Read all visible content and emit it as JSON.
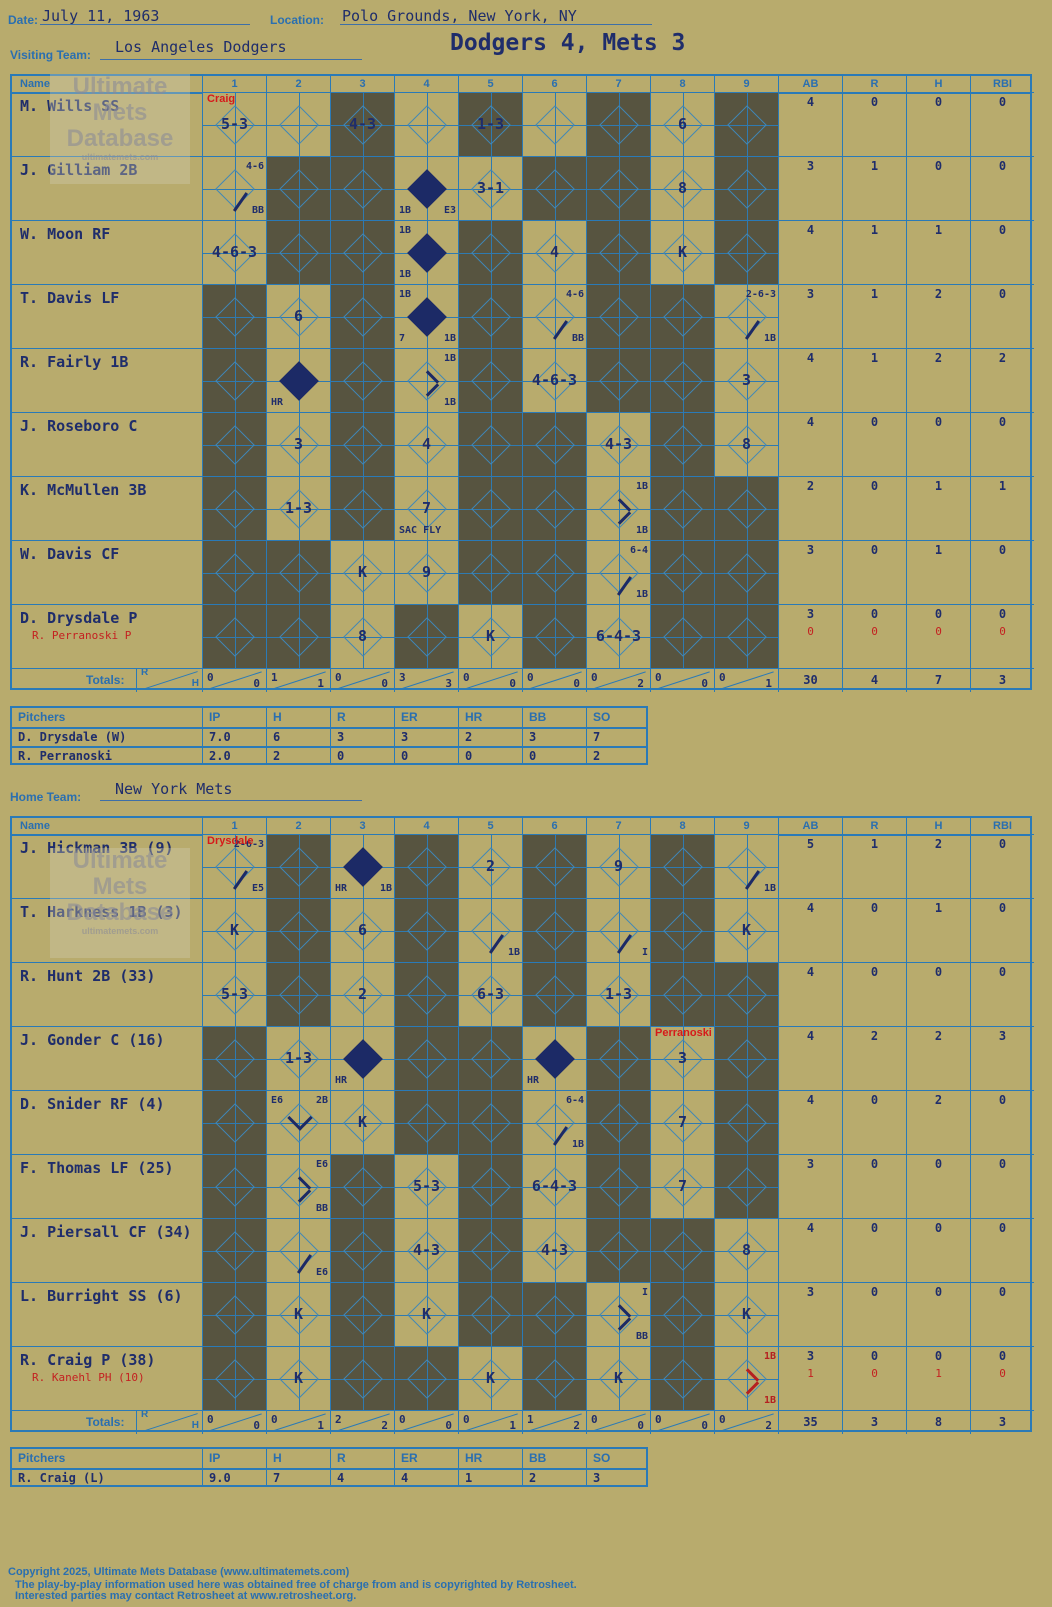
{
  "header": {
    "date_label": "Date:",
    "date": "July 11, 1963",
    "location_label": "Location:",
    "location": "Polo Grounds, New York, NY",
    "visiting_label": "Visiting Team:",
    "visiting_team": "Los Angeles Dodgers",
    "result": "Dodgers 4, Mets 3",
    "home_label": "Home Team:",
    "home_team": "New York Mets"
  },
  "columns": {
    "name": "Name",
    "innings": [
      "1",
      "2",
      "3",
      "4",
      "5",
      "6",
      "7",
      "8",
      "9"
    ],
    "stats": [
      "AB",
      "R",
      "H",
      "RBI"
    ]
  },
  "visitors": {
    "players": [
      {
        "name": "M. Wills SS",
        "stats": [
          "4",
          "0",
          "0",
          "0"
        ]
      },
      {
        "name": "J. Gilliam 2B",
        "stats": [
          "3",
          "1",
          "0",
          "0"
        ]
      },
      {
        "name": "W. Moon RF",
        "stats": [
          "4",
          "1",
          "1",
          "0"
        ]
      },
      {
        "name": "T. Davis LF",
        "stats": [
          "3",
          "1",
          "2",
          "0"
        ]
      },
      {
        "name": "R. Fairly 1B",
        "stats": [
          "4",
          "1",
          "2",
          "2"
        ]
      },
      {
        "name": "J. Roseboro C",
        "stats": [
          "4",
          "0",
          "0",
          "0"
        ]
      },
      {
        "name": "K. McMullen 3B",
        "stats": [
          "2",
          "0",
          "1",
          "1"
        ]
      },
      {
        "name": "W. Davis CF",
        "stats": [
          "3",
          "0",
          "1",
          "0"
        ]
      },
      {
        "name": "D. Drysdale P",
        "sub": "R. Perranoski P",
        "stats": [
          "3",
          "0",
          "0",
          "0"
        ],
        "substats": [
          "0",
          "0",
          "0",
          "0"
        ]
      }
    ],
    "totals_label": "Totals:",
    "totals_rh": [
      "R",
      "H"
    ],
    "inning_totals": [
      [
        "0",
        "0"
      ],
      [
        "1",
        "1"
      ],
      [
        "0",
        "0"
      ],
      [
        "3",
        "3"
      ],
      [
        "0",
        "0"
      ],
      [
        "0",
        "0"
      ],
      [
        "0",
        "2"
      ],
      [
        "0",
        "0"
      ],
      [
        "0",
        "1"
      ]
    ],
    "game_totals": [
      "30",
      "4",
      "7",
      "3"
    ],
    "pitch_change": {
      "text": "Craig",
      "row": 0,
      "inning": 0
    },
    "plays": [
      {
        "r": 0,
        "c": 0,
        "t": "5-3"
      },
      {
        "r": 0,
        "c": 2,
        "t": "4-3"
      },
      {
        "r": 0,
        "c": 4,
        "t": "1-3"
      },
      {
        "r": 0,
        "c": 7,
        "t": "6"
      },
      {
        "r": 1,
        "c": 0,
        "t": "",
        "tr": "4-6",
        "br": "BB",
        "line": true
      },
      {
        "r": 1,
        "c": 3,
        "t": "",
        "filled": true,
        "bl": "1B",
        "br": "E3"
      },
      {
        "r": 1,
        "c": 4,
        "t": "3-1"
      },
      {
        "r": 1,
        "c": 7,
        "t": "8"
      },
      {
        "r": 2,
        "c": 0,
        "t": "4-6-3"
      },
      {
        "r": 2,
        "c": 3,
        "t": "",
        "filled": true,
        "tl": "1B",
        "bl": "1B"
      },
      {
        "r": 2,
        "c": 5,
        "t": "4"
      },
      {
        "r": 2,
        "c": 7,
        "t": "K"
      },
      {
        "r": 3,
        "c": 1,
        "t": "6"
      },
      {
        "r": 3,
        "c": 3,
        "t": "",
        "filled": true,
        "tl": "1B",
        "bl": "7",
        "br": "1B"
      },
      {
        "r": 3,
        "c": 5,
        "t": "",
        "tr": "4-6",
        "br": "BB",
        "line": true
      },
      {
        "r": 3,
        "c": 8,
        "t": "",
        "tr": "2-6-3",
        "br": "1B",
        "line": true
      },
      {
        "r": 4,
        "c": 1,
        "t": "",
        "filled": true,
        "bl": "HR"
      },
      {
        "r": 4,
        "c": 3,
        "t": "",
        "tr": "1B",
        "br": "1B",
        "bracket": true
      },
      {
        "r": 4,
        "c": 5,
        "t": "4-6-3"
      },
      {
        "r": 4,
        "c": 8,
        "t": "3"
      },
      {
        "r": 5,
        "c": 1,
        "t": "3"
      },
      {
        "r": 5,
        "c": 3,
        "t": "4"
      },
      {
        "r": 5,
        "c": 6,
        "t": "4-3"
      },
      {
        "r": 5,
        "c": 8,
        "t": "8"
      },
      {
        "r": 6,
        "c": 1,
        "t": "1-3"
      },
      {
        "r": 6,
        "c": 3,
        "t": "7",
        "bl": "SAC FLY"
      },
      {
        "r": 6,
        "c": 6,
        "t": "",
        "tr": "1B",
        "br": "1B",
        "bracket": true
      },
      {
        "r": 7,
        "c": 2,
        "t": "K"
      },
      {
        "r": 7,
        "c": 3,
        "t": "9"
      },
      {
        "r": 7,
        "c": 6,
        "t": "",
        "tr": "6-4",
        "br": "1B",
        "line": true
      },
      {
        "r": 8,
        "c": 2,
        "t": "8"
      },
      {
        "r": 8,
        "c": 4,
        "t": "K"
      },
      {
        "r": 8,
        "c": 6,
        "t": "6-4-3"
      }
    ],
    "lite": [
      [
        0,
        1,
        3,
        5,
        7
      ],
      [
        0,
        3,
        4,
        7
      ],
      [
        0,
        3,
        5,
        7
      ],
      [
        1,
        3,
        5,
        8
      ],
      [
        1,
        3,
        5,
        8
      ],
      [
        1,
        3,
        6,
        8
      ],
      [
        1,
        3,
        6
      ],
      [
        2,
        3,
        6
      ],
      [
        2,
        4,
        6
      ]
    ]
  },
  "visitor_pitchers": {
    "header": [
      "Pitchers",
      "IP",
      "H",
      "R",
      "ER",
      "HR",
      "BB",
      "SO"
    ],
    "rows": [
      [
        "D. Drysdale (W)",
        "7.0",
        "6",
        "3",
        "3",
        "2",
        "3",
        "7"
      ],
      [
        "R. Perranoski",
        "2.0",
        "2",
        "0",
        "0",
        "0",
        "0",
        "2"
      ]
    ]
  },
  "home": {
    "players": [
      {
        "name": "J. Hickman 3B (9)",
        "stats": [
          "5",
          "1",
          "2",
          "0"
        ]
      },
      {
        "name": "T. Harkness 1B (3)",
        "stats": [
          "4",
          "0",
          "1",
          "0"
        ]
      },
      {
        "name": "R. Hunt 2B (33)",
        "stats": [
          "4",
          "0",
          "0",
          "0"
        ]
      },
      {
        "name": "J. Gonder C (16)",
        "stats": [
          "4",
          "2",
          "2",
          "3"
        ]
      },
      {
        "name": "D. Snider RF (4)",
        "stats": [
          "4",
          "0",
          "2",
          "0"
        ]
      },
      {
        "name": "F. Thomas LF (25)",
        "stats": [
          "3",
          "0",
          "0",
          "0"
        ]
      },
      {
        "name": "J. Piersall CF (34)",
        "stats": [
          "4",
          "0",
          "0",
          "0"
        ]
      },
      {
        "name": "L. Burright SS (6)",
        "stats": [
          "3",
          "0",
          "0",
          "0"
        ]
      },
      {
        "name": "R. Craig P (38)",
        "sub": "R. Kanehl PH (10)",
        "stats": [
          "3",
          "0",
          "0",
          "0"
        ],
        "substats": [
          "1",
          "0",
          "1",
          "0"
        ]
      }
    ],
    "totals_label": "Totals:",
    "totals_rh": [
      "R",
      "H"
    ],
    "inning_totals": [
      [
        "0",
        "0"
      ],
      [
        "0",
        "1"
      ],
      [
        "2",
        "2"
      ],
      [
        "0",
        "0"
      ],
      [
        "0",
        "1"
      ],
      [
        "1",
        "2"
      ],
      [
        "0",
        "0"
      ],
      [
        "0",
        "0"
      ],
      [
        "0",
        "2"
      ]
    ],
    "game_totals": [
      "35",
      "3",
      "8",
      "3"
    ],
    "pitch_change": {
      "text": "Drysdale",
      "row": 0,
      "inning": 0
    },
    "pitch_change2": {
      "text": "Perranoski",
      "row": 3,
      "inning": 7
    },
    "plays": [
      {
        "r": 0,
        "c": 0,
        "t": "",
        "tr": "2-6-3",
        "br": "E5",
        "line": true
      },
      {
        "r": 0,
        "c": 2,
        "t": "",
        "filled": true,
        "bl": "HR",
        "br": "1B"
      },
      {
        "r": 0,
        "c": 4,
        "t": "2"
      },
      {
        "r": 0,
        "c": 6,
        "t": "9"
      },
      {
        "r": 0,
        "c": 8,
        "t": "",
        "br": "1B",
        "line": true
      },
      {
        "r": 1,
        "c": 0,
        "t": "K"
      },
      {
        "r": 1,
        "c": 2,
        "t": "6"
      },
      {
        "r": 1,
        "c": 4,
        "t": "",
        "br": "1B",
        "line": true
      },
      {
        "r": 1,
        "c": 6,
        "t": "",
        "br": "I",
        "line": true
      },
      {
        "r": 1,
        "c": 8,
        "t": "K"
      },
      {
        "r": 2,
        "c": 0,
        "t": "5-3"
      },
      {
        "r": 2,
        "c": 2,
        "t": "2"
      },
      {
        "r": 2,
        "c": 4,
        "t": "6-3"
      },
      {
        "r": 2,
        "c": 6,
        "t": "1-3"
      },
      {
        "r": 3,
        "c": 1,
        "t": "1-3"
      },
      {
        "r": 3,
        "c": 2,
        "t": "",
        "filled": true,
        "bl": "HR"
      },
      {
        "r": 3,
        "c": 5,
        "t": "",
        "filled": true,
        "bl": "HR"
      },
      {
        "r": 3,
        "c": 7,
        "t": "3"
      },
      {
        "r": 4,
        "c": 1,
        "t": "",
        "tl": "E6",
        "tr": "2B",
        "bracket2": true
      },
      {
        "r": 4,
        "c": 2,
        "t": "K"
      },
      {
        "r": 4,
        "c": 5,
        "t": "",
        "tr": "6-4",
        "br": "1B",
        "line": true
      },
      {
        "r": 4,
        "c": 7,
        "t": "7"
      },
      {
        "r": 5,
        "c": 1,
        "t": "",
        "tr": "E6",
        "br": "BB",
        "bracket": true
      },
      {
        "r": 5,
        "c": 3,
        "t": "5-3"
      },
      {
        "r": 5,
        "c": 5,
        "t": "6-4-3"
      },
      {
        "r": 5,
        "c": 7,
        "t": "7"
      },
      {
        "r": 6,
        "c": 1,
        "t": "",
        "br": "E6",
        "line": true
      },
      {
        "r": 6,
        "c": 3,
        "t": "4-3"
      },
      {
        "r": 6,
        "c": 5,
        "t": "4-3"
      },
      {
        "r": 6,
        "c": 8,
        "t": "8"
      },
      {
        "r": 7,
        "c": 1,
        "t": "K"
      },
      {
        "r": 7,
        "c": 3,
        "t": "K"
      },
      {
        "r": 7,
        "c": 6,
        "t": "",
        "tr": "I",
        "br": "BB",
        "bracket": true
      },
      {
        "r": 7,
        "c": 8,
        "t": "K"
      },
      {
        "r": 8,
        "c": 1,
        "t": "K"
      },
      {
        "r": 8,
        "c": 4,
        "t": "K"
      },
      {
        "r": 8,
        "c": 6,
        "t": "K"
      },
      {
        "r": 8,
        "c": 8,
        "t": "",
        "tr": "1B",
        "br": "1B",
        "bracket": true,
        "red": true
      }
    ],
    "lite": [
      [
        0,
        2,
        4,
        6,
        8
      ],
      [
        0,
        2,
        4,
        6,
        8
      ],
      [
        0,
        2,
        4,
        6
      ],
      [
        1,
        2,
        5,
        7
      ],
      [
        1,
        2,
        5,
        7
      ],
      [
        1,
        3,
        5,
        7
      ],
      [
        1,
        3,
        5,
        8
      ],
      [
        1,
        3,
        6,
        8
      ],
      [
        1,
        4,
        6,
        8
      ]
    ]
  },
  "home_pitchers": {
    "header": [
      "Pitchers",
      "IP",
      "H",
      "R",
      "ER",
      "HR",
      "BB",
      "SO"
    ],
    "rows": [
      [
        "R. Craig (L)",
        "9.0",
        "7",
        "4",
        "4",
        "1",
        "2",
        "3"
      ]
    ]
  },
  "watermark": {
    "line1": "Ultimate",
    "line2": "Mets",
    "line3": "Database",
    "line4": "ultimatemets.com"
  },
  "footer": {
    "line1": "Copyright 2025, Ultimate Mets Database (www.ultimatemets.com)",
    "line2": "The play-by-play information used here was obtained free of charge from and is copyrighted by Retrosheet.",
    "line3": "Interested parties may contact Retrosheet at www.retrosheet.org."
  }
}
